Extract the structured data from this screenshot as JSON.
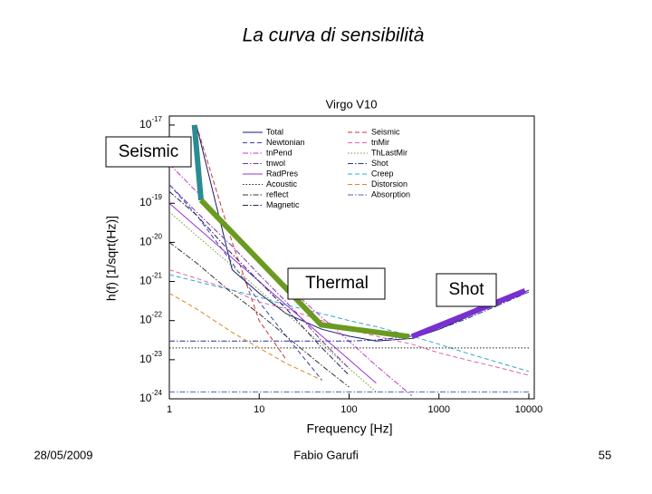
{
  "slide": {
    "title": "La curva di sensibilità",
    "date": "28/05/2009",
    "author": "Fabio Garufi",
    "page": "55"
  },
  "chart_data": {
    "type": "line",
    "title": "Virgo V10",
    "xlabel": "Frequency [Hz]",
    "ylabel": "h(f) [1/sqrt(Hz)]",
    "xscale": "log",
    "yscale": "log",
    "grid": false,
    "legend": "upper-left",
    "xlim": [
      1,
      11500
    ],
    "ylim": [
      1e-24,
      1.7e-17
    ],
    "xticks": [
      1,
      10,
      100,
      1000,
      10000
    ],
    "yticks": [
      {
        "value": 1e-17,
        "label": "10-17"
      },
      {
        "value": 1e-19,
        "label": "10-19"
      },
      {
        "value": 1e-20,
        "label": "10-20"
      },
      {
        "value": 1e-21,
        "label": "10-21"
      },
      {
        "value": 1e-22,
        "label": "10-22"
      },
      {
        "value": 1e-23,
        "label": "10-23"
      },
      {
        "value": 1e-24,
        "label": "10-24"
      }
    ],
    "x": [
      1,
      2,
      5,
      10,
      20,
      50,
      100,
      200,
      500,
      1000,
      2000,
      5000,
      10000
    ],
    "series": [
      {
        "name": "Total",
        "color": "#1a1a6e",
        "style": "solid",
        "values": [
          null,
          1e-17,
          2e-21,
          5e-22,
          1.5e-22,
          6e-23,
          4e-23,
          3e-23,
          3.5e-23,
          6e-23,
          1.2e-22,
          3e-22,
          6e-22
        ]
      },
      {
        "name": "Seismic",
        "color": "#cc3333",
        "style": "dashed",
        "values": [
          null,
          1e-17,
          1e-20,
          1e-22,
          1e-23,
          null,
          null,
          null,
          null,
          null,
          null,
          null,
          null
        ]
      },
      {
        "name": "Newtonian",
        "color": "#3344aa",
        "style": "dashed",
        "values": [
          3e-19,
          5e-20,
          3e-21,
          3e-22,
          4e-23,
          3e-24,
          null,
          null,
          null,
          null,
          null,
          null,
          null
        ]
      },
      {
        "name": "tnMir",
        "color": "#dd66aa",
        "style": "dashed",
        "values": [
          2e-21,
          1.2e-21,
          6e-22,
          3e-22,
          2e-22,
          1e-22,
          6e-23,
          4e-23,
          2.5e-23,
          1.5e-23,
          1e-23,
          6e-24,
          4e-24
        ]
      },
      {
        "name": "tnPend",
        "color": "#cc33cc",
        "style": "dashdot",
        "values": [
          1e-18,
          2e-19,
          2e-20,
          4e-21,
          8e-22,
          1.2e-22,
          3e-23,
          7e-24,
          1.2e-24,
          null,
          null,
          null,
          null
        ]
      },
      {
        "name": "ThLastMir",
        "color": "#779933",
        "style": "dotted",
        "values": [
          6e-20,
          1.5e-20,
          2.5e-21,
          6e-22,
          1.5e-22,
          2.5e-23,
          6e-24,
          1.5e-24,
          null,
          null,
          null,
          null,
          null
        ]
      },
      {
        "name": "tnwol",
        "color": "#7733aa",
        "style": "dashdot",
        "values": [
          3e-19,
          6e-20,
          8e-21,
          1.5e-21,
          3e-22,
          3e-23,
          6e-24,
          null,
          null,
          null,
          null,
          null,
          null
        ]
      },
      {
        "name": "Shot",
        "color": "#223399",
        "style": "dashdot",
        "values": [
          3e-23,
          3e-23,
          3e-23,
          3e-23,
          3e-23,
          3e-23,
          3e-23,
          3.2e-23,
          4e-23,
          6e-23,
          1.1e-22,
          2.7e-22,
          5.4e-22
        ]
      },
      {
        "name": "RadPres",
        "color": "#9933cc",
        "style": "solid",
        "values": [
          1e-19,
          2.5e-20,
          4e-21,
          1e-21,
          2.5e-22,
          4e-23,
          1e-23,
          2.5e-24,
          null,
          null,
          null,
          null,
          null
        ]
      },
      {
        "name": "Creep",
        "color": "#33aacc",
        "style": "dashed",
        "values": [
          1.5e-21,
          1e-21,
          6e-22,
          4e-22,
          2.5e-22,
          1.5e-22,
          1e-22,
          7e-23,
          4e-23,
          2.5e-23,
          1.5e-23,
          8e-24,
          5e-24
        ]
      },
      {
        "name": "Acoustic",
        "color": "#222222",
        "style": "dotted",
        "values": [
          2e-23,
          2e-23,
          2e-23,
          2e-23,
          2e-23,
          2e-23,
          2e-23,
          2e-23,
          2e-23,
          2e-23,
          2e-23,
          2e-23,
          2e-23
        ]
      },
      {
        "name": "Distorsion",
        "color": "#dd8822",
        "style": "dashed",
        "values": [
          5e-22,
          2e-22,
          5e-23,
          2e-23,
          8e-24,
          3e-24,
          null,
          null,
          null,
          null,
          null,
          null,
          null
        ]
      },
      {
        "name": "reflect",
        "color": "#333333",
        "style": "dashdot",
        "values": [
          1e-20,
          3e-21,
          5e-22,
          1.5e-22,
          4e-23,
          7e-24,
          2e-24,
          null,
          null,
          null,
          null,
          null,
          null
        ]
      },
      {
        "name": "Absorption",
        "color": "#4466bb",
        "style": "dashdot",
        "values": [
          1.5e-24,
          1.5e-24,
          1.5e-24,
          1.5e-24,
          1.5e-24,
          1.5e-24,
          1.5e-24,
          1.5e-24,
          1.5e-24,
          1.5e-24,
          1.5e-24,
          1.5e-24,
          1.5e-24
        ]
      },
      {
        "name": "Magnetic",
        "color": "#222266",
        "style": "dashdot",
        "values": [
          2e-19,
          5e-20,
          5e-21,
          1e-21,
          2e-22,
          2e-23,
          4e-24,
          null,
          null,
          null,
          null,
          null,
          null
        ]
      }
    ],
    "annotations": [
      {
        "text": "Seismic",
        "color": "#2a8c92",
        "x": [
          1.9,
          2.25
        ],
        "values": [
          1e-17,
          1.2e-19
        ]
      },
      {
        "text": "Thermal",
        "color": "#6a9a1f",
        "x": [
          2.25,
          49,
          468
        ],
        "values": [
          1.2e-19,
          7.8e-23,
          3.9e-23
        ]
      },
      {
        "text": "Shot",
        "color": "#7a2fd0",
        "x": [
          500,
          9100
        ],
        "values": [
          3.9e-23,
          5.8e-22
        ]
      }
    ]
  }
}
